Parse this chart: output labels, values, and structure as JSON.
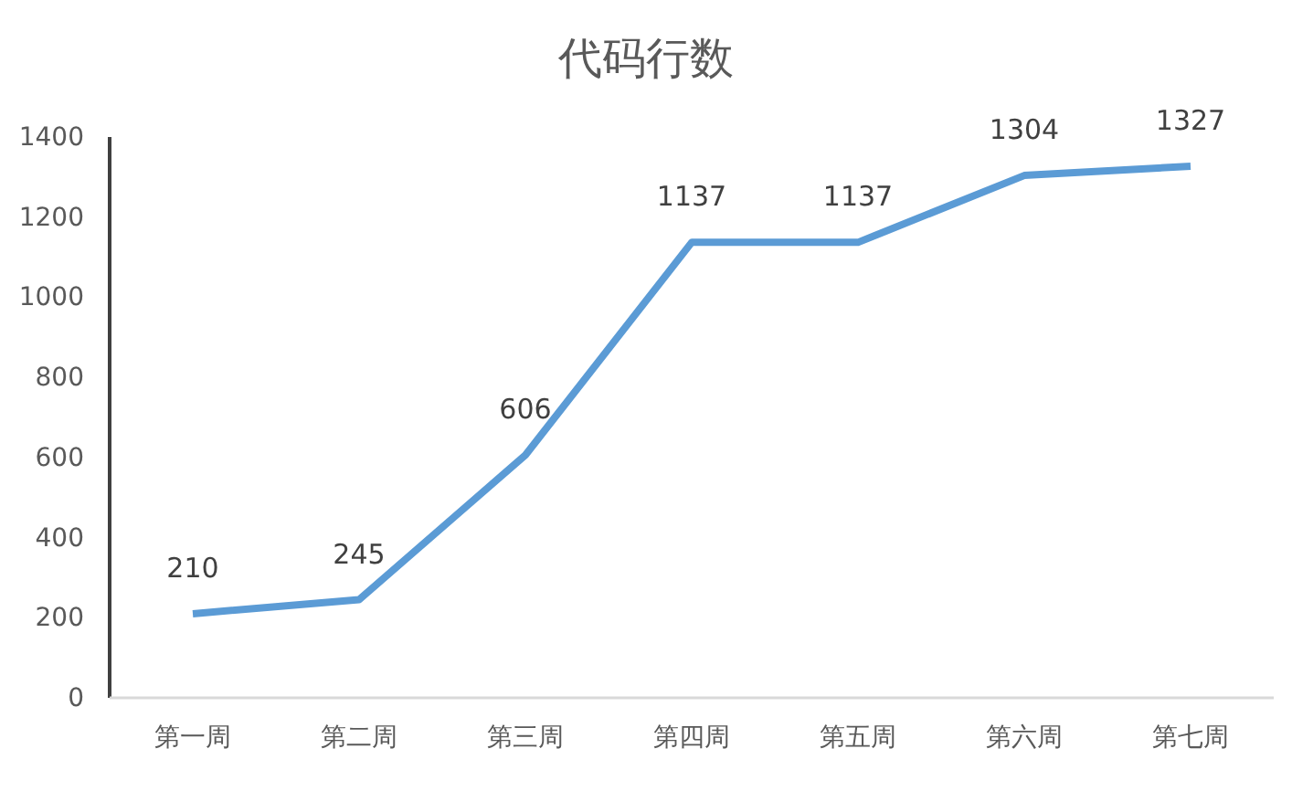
{
  "chart_data": {
    "type": "line",
    "title": "代码行数",
    "categories": [
      "第一周",
      "第二周",
      "第三周",
      "第四周",
      "第五周",
      "第六周",
      "第七周"
    ],
    "series": [
      {
        "color": "#5b9bd5",
        "values": [
          210,
          245,
          606,
          1137,
          1137,
          1304,
          1327
        ]
      }
    ],
    "ylim": [
      0,
      1400
    ],
    "yticks": [
      0,
      200,
      400,
      600,
      800,
      1000,
      1200,
      1400
    ],
    "grid": false,
    "marker": "none",
    "line_style": "solid",
    "data_labels": true
  }
}
